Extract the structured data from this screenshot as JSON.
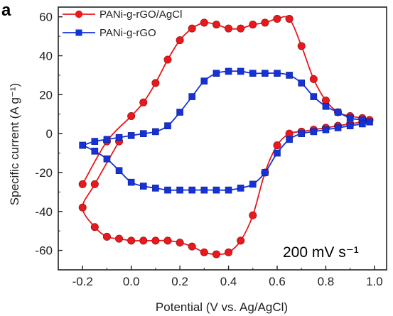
{
  "panel_label": "a",
  "annotation": "200 mV s⁻¹",
  "chart_data": {
    "type": "line",
    "xlabel": "Potential (V vs. Ag/AgCl)",
    "ylabel": "Specific current (A g⁻¹)",
    "xlim": [
      -0.3,
      1.05
    ],
    "ylim": [
      -70,
      65
    ],
    "xticks": [
      -0.2,
      0.0,
      0.2,
      0.4,
      0.6,
      0.8,
      1.0
    ],
    "xtick_labels": [
      "-0.2",
      "0.0",
      "0.2",
      "0.4",
      "0.6",
      "0.8",
      "1.0"
    ],
    "yticks": [
      -60,
      -40,
      -20,
      0,
      20,
      40,
      60
    ],
    "ytick_labels": [
      "-60",
      "-40",
      "-20",
      "0",
      "20",
      "40",
      "60"
    ],
    "grid": false,
    "legend_position": "top-left",
    "series": [
      {
        "name": "PANi-g-rGO/AgCl",
        "color": "#e8181c",
        "marker": "circle",
        "x": [
          -0.2,
          -0.1,
          0.0,
          0.05,
          0.1,
          0.15,
          0.2,
          0.25,
          0.3,
          0.35,
          0.4,
          0.45,
          0.5,
          0.55,
          0.6,
          0.65,
          0.7,
          0.75,
          0.8,
          0.85,
          0.9,
          0.95,
          0.98,
          0.95,
          0.9,
          0.85,
          0.8,
          0.75,
          0.7,
          0.65,
          0.6,
          0.55,
          0.5,
          0.45,
          0.4,
          0.35,
          0.3,
          0.25,
          0.2,
          0.15,
          0.1,
          0.05,
          0.0,
          -0.05,
          -0.1,
          -0.15,
          -0.2,
          -0.15,
          -0.05
        ],
        "y": [
          -26,
          -4,
          9,
          16,
          26,
          38,
          48,
          54,
          57,
          56,
          54,
          54,
          56,
          57,
          59,
          59,
          45,
          28,
          17,
          11,
          9,
          8,
          7,
          6,
          5,
          4,
          3,
          2,
          1,
          0,
          -6,
          -20,
          -42,
          -55,
          -61,
          -62,
          -61,
          -58,
          -56,
          -55,
          -55,
          -55,
          -55,
          -54,
          -53,
          -48,
          -38,
          -26,
          -4
        ]
      },
      {
        "name": "PANi-g-rGO",
        "color": "#1432d8",
        "marker": "square",
        "x": [
          -0.2,
          -0.15,
          -0.1,
          -0.05,
          0.0,
          0.05,
          0.1,
          0.15,
          0.2,
          0.25,
          0.3,
          0.35,
          0.4,
          0.45,
          0.5,
          0.55,
          0.6,
          0.65,
          0.7,
          0.75,
          0.8,
          0.85,
          0.9,
          0.95,
          0.98,
          0.95,
          0.9,
          0.85,
          0.8,
          0.75,
          0.7,
          0.65,
          0.6,
          0.55,
          0.5,
          0.45,
          0.4,
          0.35,
          0.3,
          0.25,
          0.2,
          0.15,
          0.1,
          0.05,
          0.0,
          -0.05,
          -0.1,
          -0.15,
          -0.2
        ],
        "y": [
          -6,
          -4,
          -3,
          -2,
          -1,
          0,
          1,
          4,
          11,
          19,
          27,
          31,
          32,
          32,
          31,
          31,
          31,
          30,
          26,
          19,
          14,
          11,
          8,
          7,
          6,
          5,
          4,
          3,
          2,
          1,
          0,
          -3,
          -10,
          -20,
          -26,
          -28,
          -29,
          -29,
          -29,
          -29,
          -29,
          -29,
          -28,
          -27,
          -25,
          -19,
          -13,
          -9,
          -6
        ]
      }
    ]
  }
}
